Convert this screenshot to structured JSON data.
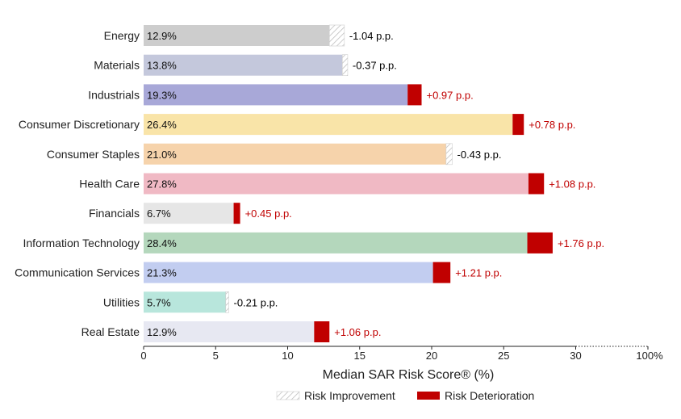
{
  "chart_data": {
    "type": "bar",
    "orientation": "horizontal",
    "stacked_change": true,
    "categories": [
      "Energy",
      "Materials",
      "Industrials",
      "Consumer Discretionary",
      "Consumer Staples",
      "Health Care",
      "Financials",
      "Information Technology",
      "Communication Services",
      "Utilities",
      "Real Estate"
    ],
    "values": [
      12.9,
      13.8,
      19.3,
      26.4,
      21.0,
      27.8,
      6.7,
      28.4,
      21.3,
      5.7,
      12.9
    ],
    "value_labels": [
      "12.9%",
      "13.8%",
      "19.3%",
      "26.4%",
      "21.0%",
      "27.8%",
      "6.7%",
      "28.4%",
      "21.3%",
      "5.7%",
      "12.9%"
    ],
    "changes": [
      -1.04,
      -0.37,
      0.97,
      0.78,
      -0.43,
      1.08,
      0.45,
      1.76,
      1.21,
      -0.21,
      1.06
    ],
    "change_labels": [
      "-1.04 p.p.",
      "-0.37 p.p.",
      "+0.97 p.p.",
      "+0.78 p.p.",
      "-0.43 p.p.",
      "+1.08 p.p.",
      "+0.45 p.p.",
      "+1.76 p.p.",
      "+1.21 p.p.",
      "-0.21 p.p.",
      "+1.06 p.p."
    ],
    "bar_colors": [
      "#cdcdcd",
      "#c4c8dc",
      "#a8a8d8",
      "#f9e4a8",
      "#f6d3ab",
      "#f0b9c4",
      "#e6e6e6",
      "#b4d7bc",
      "#c2cdf0",
      "#b8e6dc",
      "#e7e8f2"
    ],
    "xlim": [
      0,
      30
    ],
    "xticks": [
      0,
      5,
      10,
      15,
      20,
      25,
      30
    ],
    "xtick_labels": [
      "0",
      "5",
      "10",
      "15",
      "20",
      "25",
      "30"
    ],
    "x_end_label": "100%",
    "xlabel": "Median SAR Risk Score® (%)",
    "legend": {
      "placement": "bottom-center",
      "items": [
        {
          "label": "Risk Improvement",
          "pattern": "hatch"
        },
        {
          "label": "Risk Deterioration",
          "color": "#c00000"
        }
      ]
    },
    "colors": {
      "deterioration": "#c00000",
      "improvement_hatch": "#bfbfbf",
      "negative_text": "#000000",
      "positive_text": "#c00000",
      "axis": "#222222"
    }
  }
}
